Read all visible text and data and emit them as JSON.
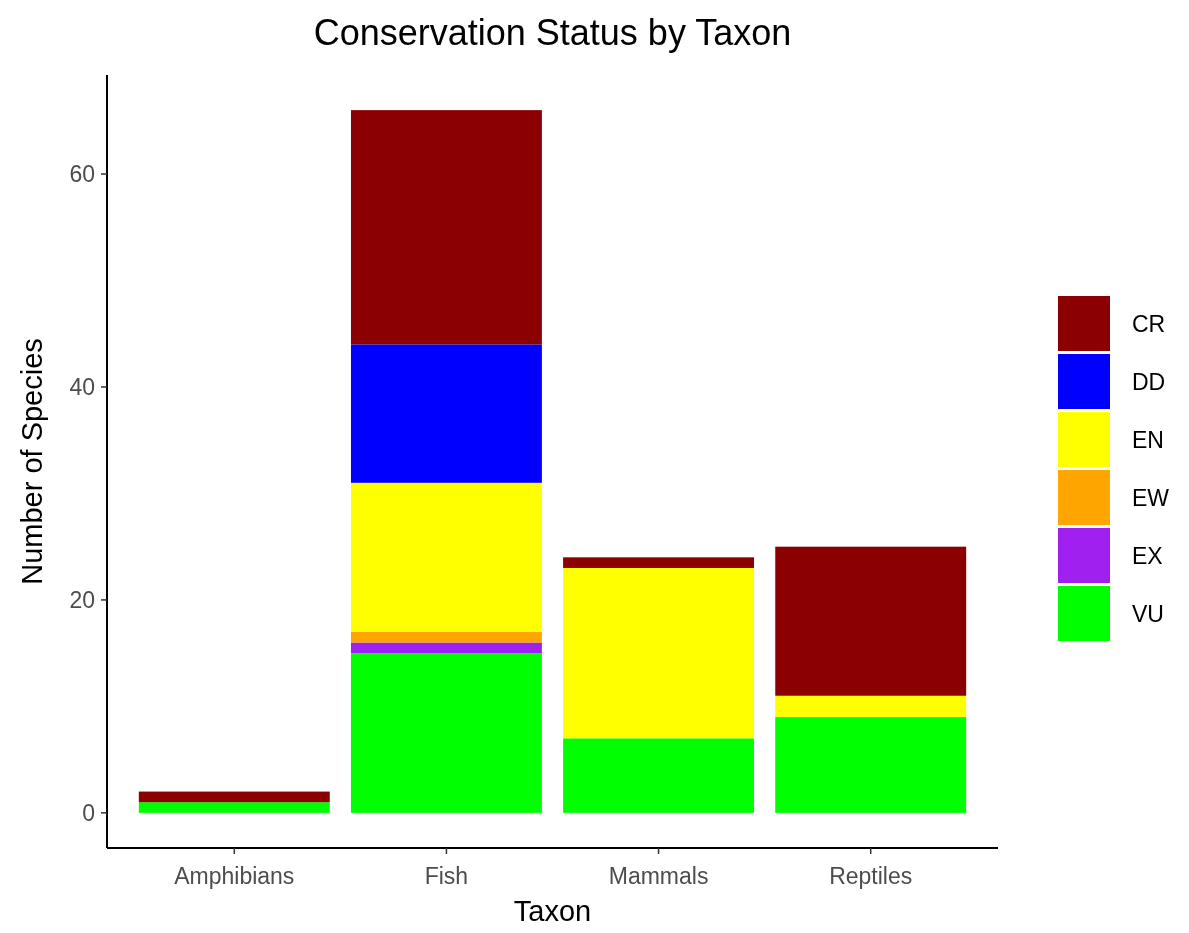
{
  "chart_data": {
    "type": "bar",
    "title": "Conservation Status by Taxon",
    "xlabel": "Taxon",
    "ylabel": "Number of Species",
    "categories": [
      "Amphibians",
      "Fish",
      "Mammals",
      "Reptiles"
    ],
    "stacked": true,
    "series": [
      {
        "name": "VU",
        "color": "#00ff00",
        "values": [
          1,
          15,
          7,
          9
        ]
      },
      {
        "name": "EX",
        "color": "#a020f0",
        "values": [
          0,
          1,
          0,
          0
        ]
      },
      {
        "name": "EW",
        "color": "#ffa500",
        "values": [
          0,
          1,
          0,
          0
        ]
      },
      {
        "name": "EN",
        "color": "#ffff00",
        "values": [
          0,
          14,
          16,
          2
        ]
      },
      {
        "name": "DD",
        "color": "#0000ff",
        "values": [
          0,
          13,
          0,
          0
        ]
      },
      {
        "name": "CR",
        "color": "#8b0000",
        "values": [
          1,
          22,
          1,
          14
        ]
      }
    ],
    "ylim": [
      -3.3,
      69.3
    ],
    "yticks": [
      0,
      20,
      40,
      60
    ],
    "grid": false,
    "legend": "right"
  }
}
